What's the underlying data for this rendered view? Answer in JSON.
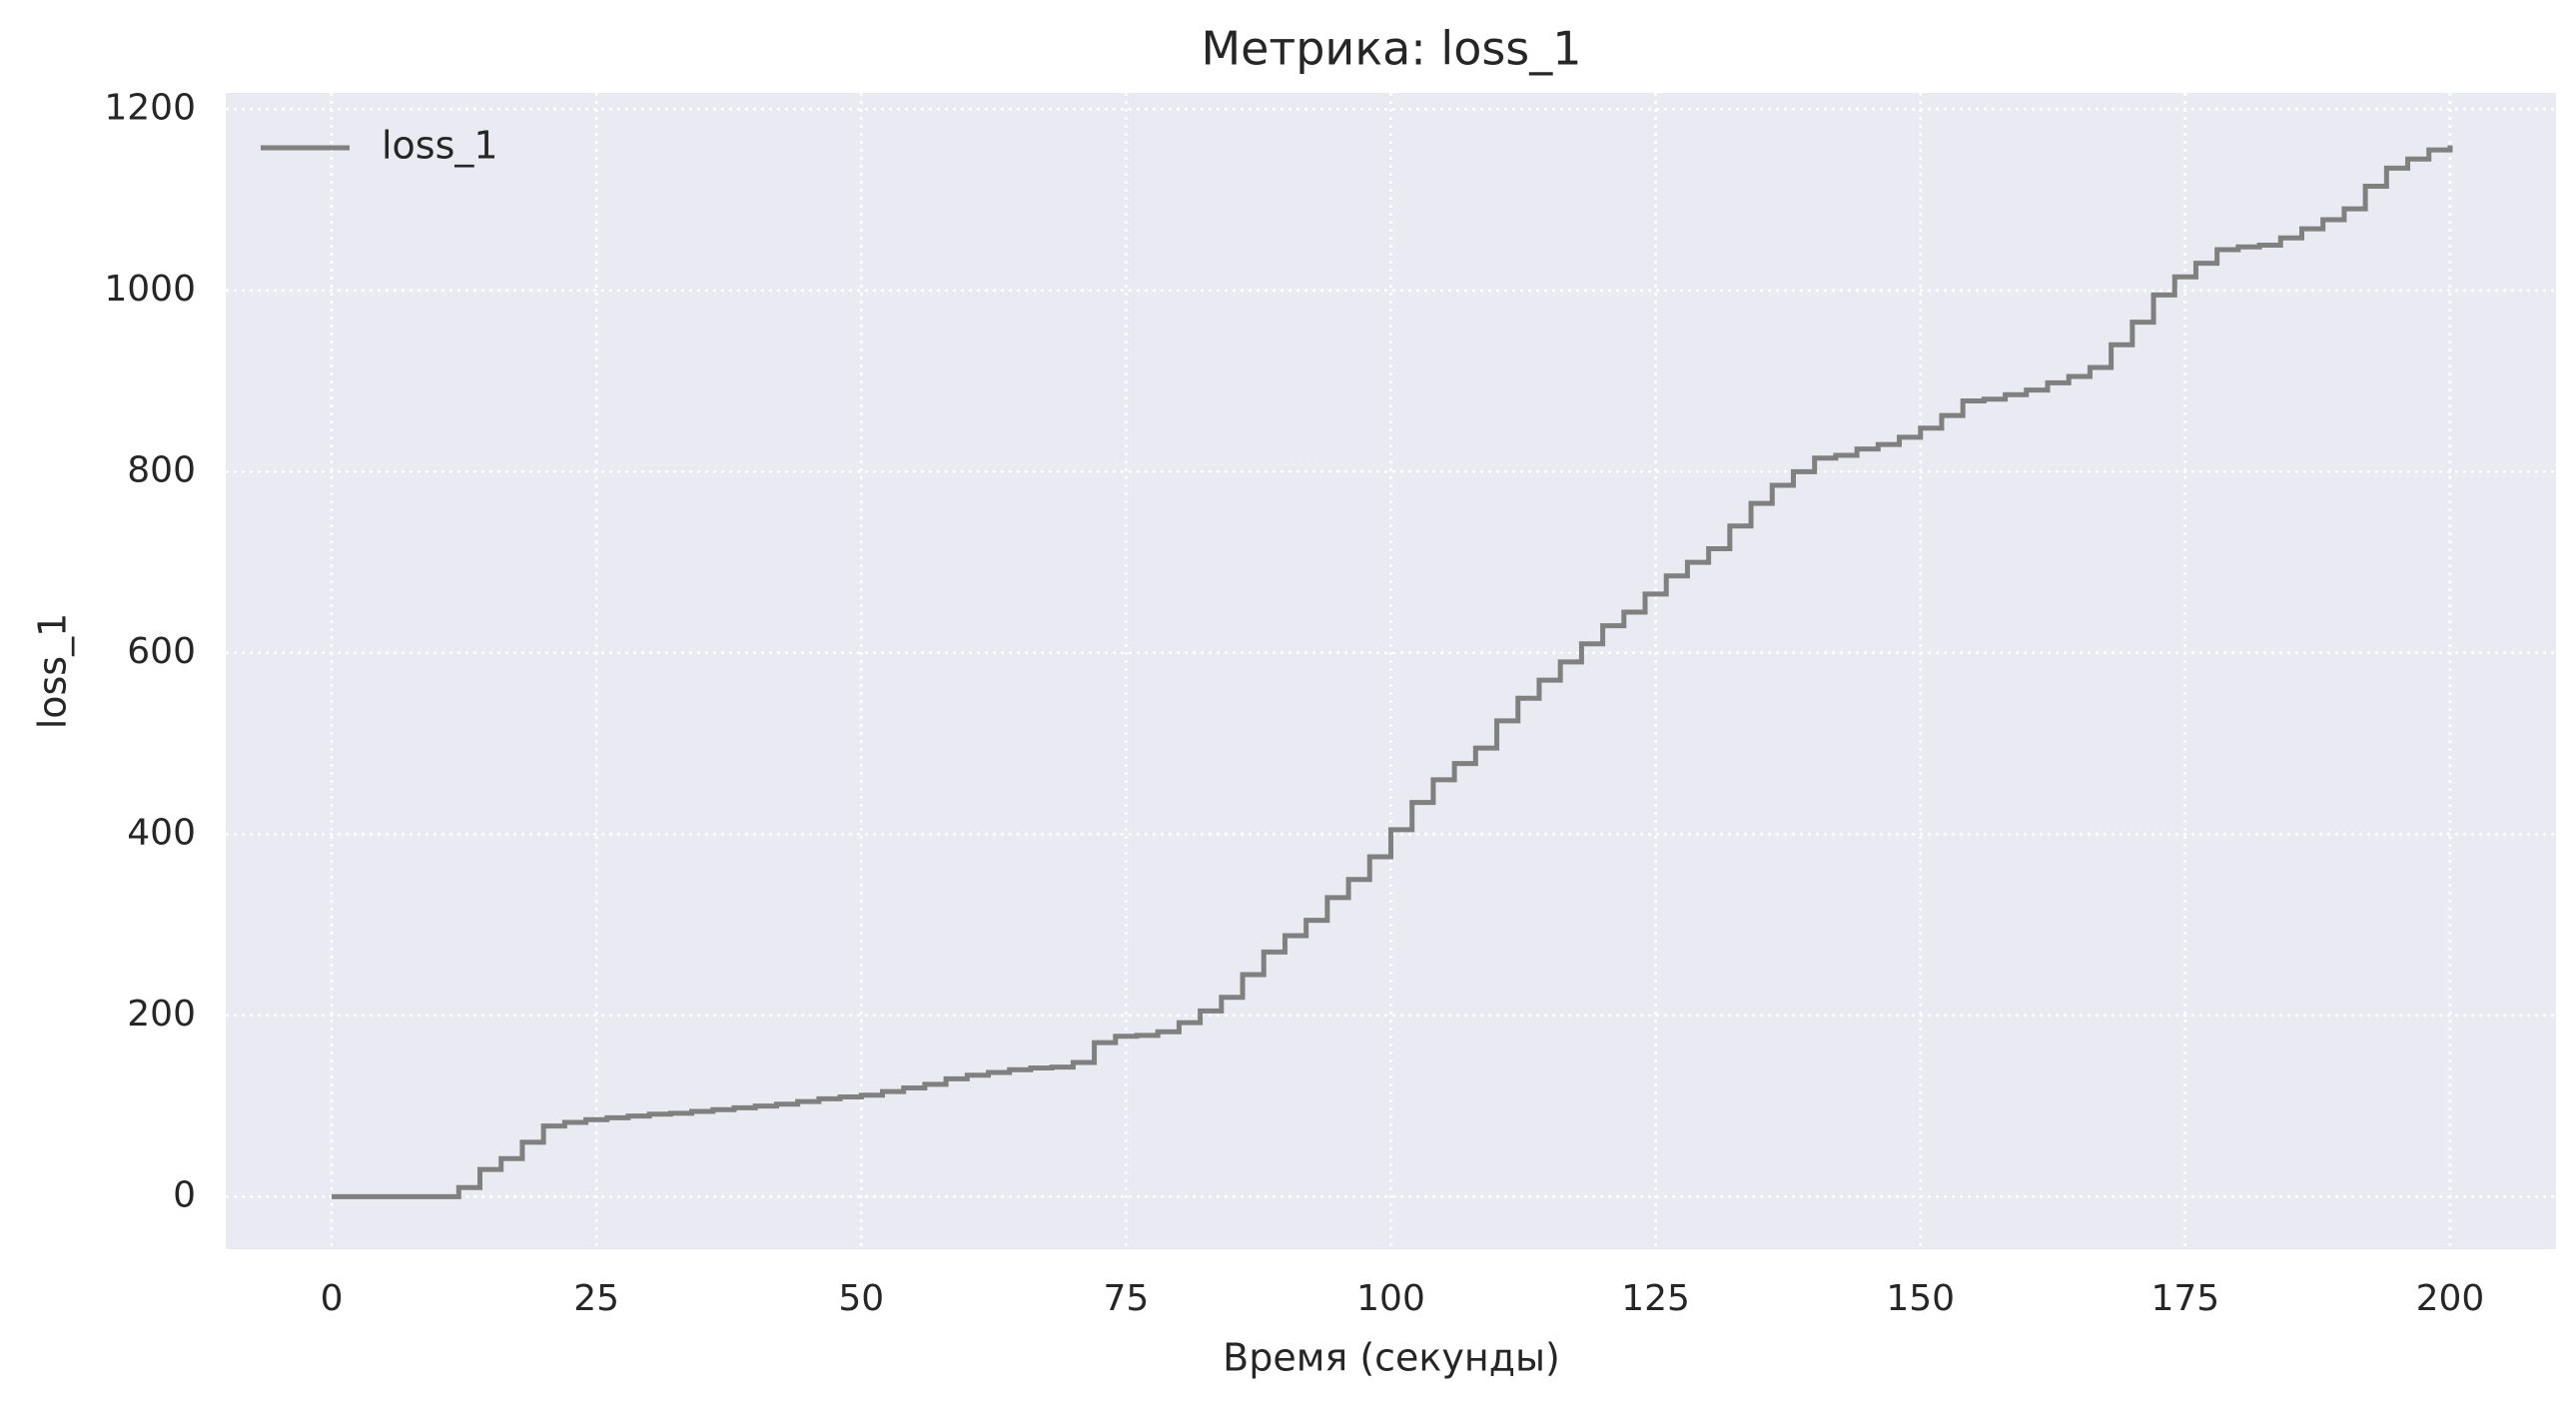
{
  "chart_data": {
    "type": "line",
    "step": "post",
    "title": "Метрика: loss_1",
    "xlabel": "Время (секунды)",
    "ylabel": "loss_1",
    "x": [
      0,
      2,
      4,
      6,
      8,
      10,
      12,
      14,
      16,
      18,
      20,
      22,
      24,
      26,
      28,
      30,
      32,
      34,
      36,
      38,
      40,
      42,
      44,
      46,
      48,
      50,
      52,
      54,
      56,
      58,
      60,
      62,
      64,
      66,
      68,
      70,
      72,
      74,
      76,
      78,
      80,
      82,
      84,
      86,
      88,
      90,
      92,
      94,
      96,
      98,
      100,
      102,
      104,
      106,
      108,
      110,
      112,
      114,
      116,
      118,
      120,
      122,
      124,
      126,
      128,
      130,
      132,
      134,
      136,
      138,
      140,
      142,
      144,
      146,
      148,
      150,
      152,
      154,
      156,
      158,
      160,
      162,
      164,
      166,
      168,
      170,
      172,
      174,
      176,
      178,
      180,
      182,
      184,
      186,
      188,
      190,
      192,
      194,
      196,
      198,
      200
    ],
    "series": [
      {
        "name": "loss_1",
        "color": "#808080",
        "values": [
          0,
          0,
          0,
          0,
          0,
          0,
          10,
          30,
          42,
          60,
          78,
          82,
          85,
          87,
          89,
          91,
          92,
          94,
          96,
          98,
          100,
          102,
          105,
          108,
          110,
          112,
          116,
          120,
          124,
          130,
          134,
          137,
          140,
          142,
          143,
          148,
          170,
          177,
          178,
          182,
          192,
          205,
          220,
          245,
          270,
          288,
          305,
          330,
          350,
          375,
          405,
          435,
          460,
          478,
          495,
          525,
          550,
          570,
          590,
          610,
          630,
          645,
          665,
          685,
          700,
          715,
          740,
          765,
          785,
          800,
          815,
          818,
          825,
          830,
          838,
          848,
          862,
          878,
          880,
          885,
          890,
          898,
          905,
          915,
          940,
          965,
          995,
          1015,
          1030,
          1045,
          1048,
          1050,
          1058,
          1068,
          1078,
          1090,
          1115,
          1135,
          1145,
          1155,
          1160
        ]
      }
    ],
    "xlim": [
      -10,
      210
    ],
    "ylim": [
      -58,
      1218
    ],
    "xticks": [
      0,
      25,
      50,
      75,
      100,
      125,
      150,
      175,
      200
    ],
    "yticks": [
      0,
      200,
      400,
      600,
      800,
      1000,
      1200
    ],
    "grid": true,
    "legend": "upper left"
  }
}
